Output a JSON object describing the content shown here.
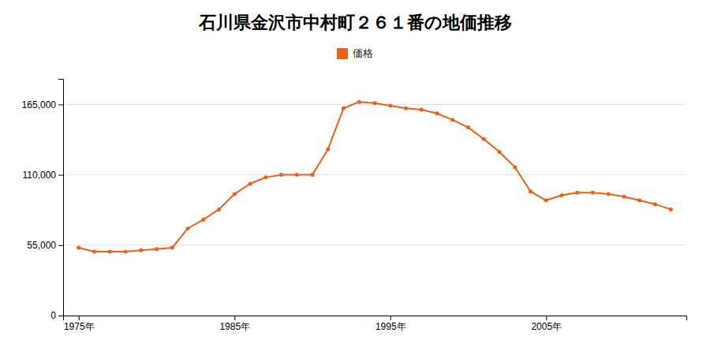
{
  "chart_data": {
    "type": "line",
    "title": "石川県金沢市中村町２６１番の地価推移",
    "x": [
      1975,
      1976,
      1977,
      1978,
      1979,
      1980,
      1981,
      1982,
      1983,
      1984,
      1985,
      1986,
      1987,
      1988,
      1989,
      1990,
      1991,
      1992,
      1993,
      1994,
      1995,
      1996,
      1997,
      1998,
      1999,
      2000,
      2001,
      2002,
      2003,
      2004,
      2005,
      2006,
      2007,
      2008,
      2009,
      2010,
      2011,
      2012,
      2013
    ],
    "series": [
      {
        "name": "価格",
        "color": "#E8621A",
        "values": [
          53000,
          50000,
          50000,
          50000,
          51000,
          52000,
          53000,
          68000,
          75000,
          83000,
          95000,
          103000,
          108000,
          110000,
          110000,
          110000,
          130000,
          162000,
          167000,
          166000,
          164000,
          162000,
          161000,
          158000,
          153000,
          147000,
          138000,
          128000,
          116000,
          97000,
          90000,
          94000,
          96000,
          96000,
          95000,
          93000,
          90000,
          87000,
          83000
        ]
      }
    ],
    "xlim": [
      1974,
      2014
    ],
    "xticks": [
      {
        "value": 1975,
        "label": "1975年"
      },
      {
        "value": 1985,
        "label": "1985年"
      },
      {
        "value": 1995,
        "label": "1995年"
      },
      {
        "value": 2005,
        "label": "2005年"
      }
    ],
    "ylim": [
      0,
      185000
    ],
    "yticks": [
      0,
      {
        "value": 55000,
        "label": "55,000"
      },
      {
        "value": 110000,
        "label": "110,000"
      },
      {
        "value": 165000,
        "label": "165,000"
      }
    ],
    "grid": true,
    "legend": "top",
    "marker": "circle"
  }
}
